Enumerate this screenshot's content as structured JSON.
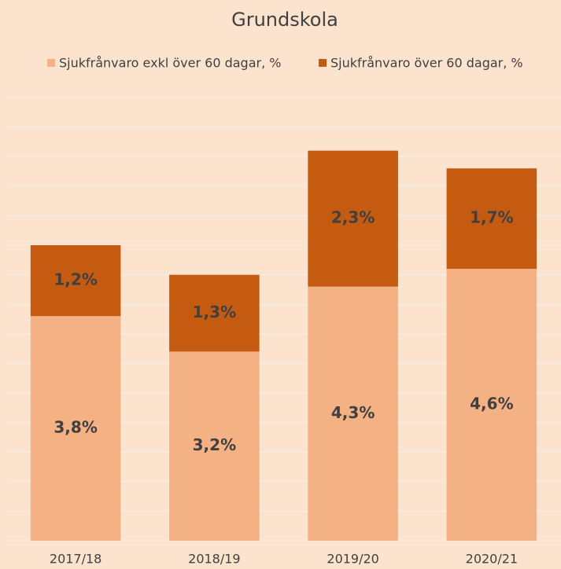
{
  "chart_data": {
    "type": "stacked_bar",
    "title": "Grundskola",
    "categories": [
      "2017/18",
      "2018/19",
      "2019/20",
      "2020/21"
    ],
    "series": [
      {
        "name": "Sjukfrånvaro exkl över 60 dagar, %",
        "color": "#f4b183",
        "values": [
          3.8,
          3.2,
          4.3,
          4.6
        ],
        "value_labels": [
          "3,8%",
          "3,2%",
          "4,3%",
          "4,6%"
        ]
      },
      {
        "name": "Sjukfrånvaro över 60 dagar, %",
        "color": "#c55a11",
        "values": [
          1.2,
          1.3,
          2.3,
          1.7
        ],
        "value_labels": [
          "1,2%",
          "1,3%",
          "2,3%",
          "1,7%"
        ]
      }
    ],
    "ylim": [
      0,
      7.5
    ],
    "yticks": [
      0,
      0.5,
      1,
      1.5,
      2,
      2.5,
      3,
      3.5,
      4,
      4.5,
      5,
      5.5,
      6,
      6.5,
      7,
      7.5
    ],
    "grid": true,
    "legend": "top"
  }
}
